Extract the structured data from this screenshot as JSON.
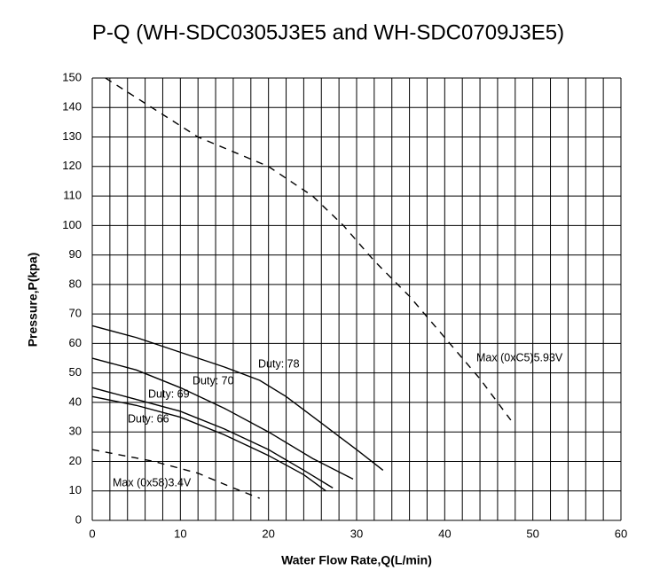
{
  "chart_data": {
    "type": "line",
    "title": "P-Q (WH-SDC0305J3E5 and WH-SDC0709J3E5)",
    "x_label": "Water Flow Rate,Q(L/min)",
    "y_label": "Pressure,P(kpa)",
    "xlim": [
      0,
      60
    ],
    "ylim": [
      0,
      150
    ],
    "xticks": [
      0,
      10,
      20,
      30,
      40,
      50,
      60
    ],
    "yticks": [
      0,
      10,
      20,
      30,
      40,
      50,
      60,
      70,
      80,
      90,
      100,
      110,
      120,
      130,
      140,
      150
    ],
    "x_grid": [
      0,
      2,
      4,
      6,
      8,
      10,
      12,
      14,
      16,
      18,
      20,
      22,
      24,
      26,
      28,
      30,
      32,
      34,
      36,
      38,
      40,
      42,
      44,
      46,
      48,
      50,
      52,
      54,
      56,
      58,
      60
    ],
    "grid": true,
    "series": [
      {
        "name": "Max (0xC5)5.93V",
        "color": "#000000",
        "dashed": true,
        "x": [
          1.5,
          12,
          20,
          25,
          28.5,
          32,
          36,
          40,
          44,
          47.5
        ],
        "values": [
          150,
          130,
          120,
          110,
          100,
          88,
          76,
          62,
          48,
          34
        ]
      },
      {
        "name": "Duty: 78",
        "color": "#000000",
        "dashed": false,
        "x": [
          0,
          5,
          10,
          15,
          19,
          22,
          26,
          30,
          33
        ],
        "values": [
          66,
          62,
          57,
          52,
          47.5,
          42,
          33,
          24,
          17
        ]
      },
      {
        "name": "Duty: 70",
        "color": "#000000",
        "dashed": false,
        "x": [
          0,
          5,
          10,
          15,
          20,
          25,
          29.6
        ],
        "values": [
          55,
          51,
          45,
          38,
          30,
          21,
          14
        ]
      },
      {
        "name": "Duty: 69",
        "color": "#000000",
        "dashed": false,
        "x": [
          0,
          5,
          10,
          15,
          20,
          24,
          27.3
        ],
        "values": [
          45,
          41,
          37,
          31,
          24,
          17,
          11
        ]
      },
      {
        "name": "Duty: 66",
        "color": "#000000",
        "dashed": false,
        "x": [
          0,
          5,
          10,
          15,
          20,
          24,
          26.5
        ],
        "values": [
          42,
          39,
          35,
          29,
          22,
          15.5,
          10
        ]
      },
      {
        "name": "Max (0x58)3.4V",
        "color": "#000000",
        "dashed": true,
        "x": [
          0,
          7,
          12,
          16,
          19
        ],
        "values": [
          24,
          20,
          16,
          11,
          7.5
        ]
      }
    ]
  }
}
